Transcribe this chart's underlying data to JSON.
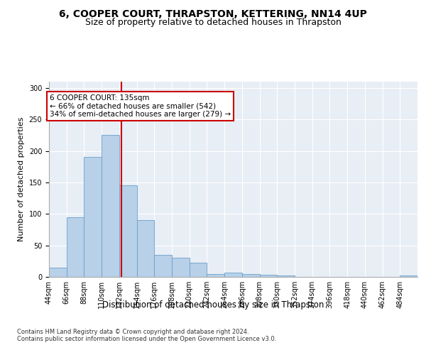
{
  "title": "6, COOPER COURT, THRAPSTON, KETTERING, NN14 4UP",
  "subtitle": "Size of property relative to detached houses in Thrapston",
  "xlabel": "Distribution of detached houses by size in Thrapston",
  "ylabel": "Number of detached properties",
  "bin_starts": [
    44,
    66,
    88,
    110,
    132,
    154,
    176,
    198,
    220,
    242,
    264,
    286,
    308,
    330,
    352,
    374,
    396,
    418,
    440,
    462,
    484
  ],
  "bin_width": 22,
  "bar_heights": [
    15,
    95,
    190,
    225,
    145,
    90,
    35,
    30,
    23,
    5,
    7,
    5,
    3,
    2,
    0,
    0,
    0,
    0,
    0,
    0,
    2
  ],
  "bar_color": "#b8d0e8",
  "bar_edge_color": "#6aa0cc",
  "property_size": 135,
  "red_line_color": "#cc0000",
  "annotation_text": "6 COOPER COURT: 135sqm\n← 66% of detached houses are smaller (542)\n34% of semi-detached houses are larger (279) →",
  "annotation_box_color": "white",
  "annotation_box_edge_color": "#cc0000",
  "ylim": [
    0,
    310
  ],
  "yticks": [
    0,
    50,
    100,
    150,
    200,
    250,
    300
  ],
  "bg_color": "#e8eef5",
  "footer_text": "Contains HM Land Registry data © Crown copyright and database right 2024.\nContains public sector information licensed under the Open Government Licence v3.0.",
  "title_fontsize": 10,
  "subtitle_fontsize": 9,
  "tick_label_fontsize": 7,
  "ylabel_fontsize": 8,
  "xlabel_fontsize": 8.5,
  "footer_fontsize": 6
}
